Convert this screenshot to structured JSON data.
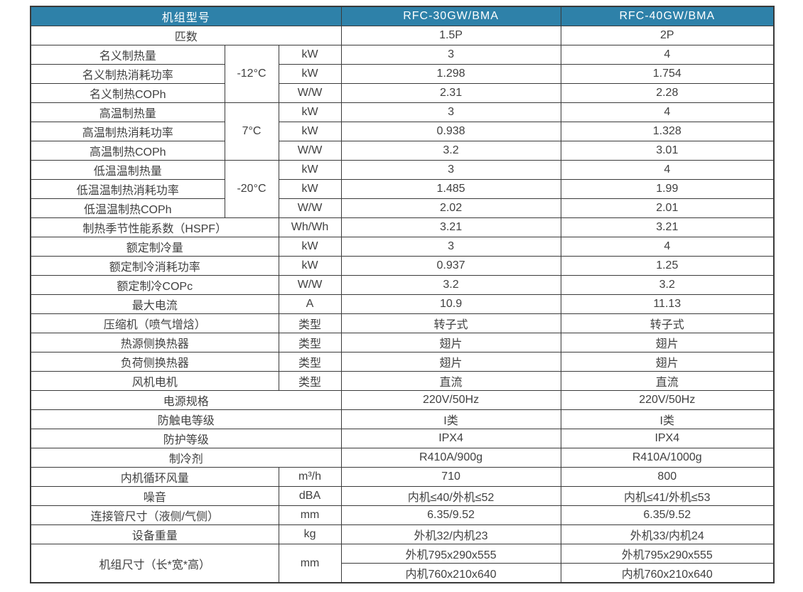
{
  "colors": {
    "header_bg": "#2e81a9",
    "header_text": "#ffffff",
    "border": "#3a3a3a",
    "cell_text": "#404040"
  },
  "table": {
    "header": {
      "model_label": "机组型号",
      "models": [
        "RFC-30GW/BMA",
        "RFC-40GW/BMA"
      ]
    },
    "rows": [
      {
        "cells": [
          {
            "text": "匹数",
            "colspan": 3,
            "kind": "label"
          },
          {
            "text": "1.5P",
            "kind": "value"
          },
          {
            "text": "2P",
            "kind": "value"
          }
        ]
      },
      {
        "cells": [
          {
            "text": "名义制热量",
            "kind": "label"
          },
          {
            "text": "-12°C",
            "rowspan": 3,
            "kind": "temp"
          },
          {
            "text": "kW",
            "kind": "unit"
          },
          {
            "text": "3",
            "kind": "value"
          },
          {
            "text": "4",
            "kind": "value"
          }
        ]
      },
      {
        "cells": [
          {
            "text": "名义制热消耗功率",
            "kind": "label"
          },
          {
            "text": "kW",
            "kind": "unit"
          },
          {
            "text": "1.298",
            "kind": "value"
          },
          {
            "text": "1.754",
            "kind": "value"
          }
        ]
      },
      {
        "cells": [
          {
            "text": "名义制热COPh",
            "kind": "label"
          },
          {
            "text": "W/W",
            "kind": "unit"
          },
          {
            "text": "2.31",
            "kind": "value"
          },
          {
            "text": "2.28",
            "kind": "value"
          }
        ]
      },
      {
        "cells": [
          {
            "text": "高温制热量",
            "kind": "label"
          },
          {
            "text": "7°C",
            "rowspan": 3,
            "kind": "temp"
          },
          {
            "text": "kW",
            "kind": "unit"
          },
          {
            "text": "3",
            "kind": "value"
          },
          {
            "text": "4",
            "kind": "value"
          }
        ]
      },
      {
        "cells": [
          {
            "text": "高温制热消耗功率",
            "kind": "label"
          },
          {
            "text": "kW",
            "kind": "unit"
          },
          {
            "text": "0.938",
            "kind": "value"
          },
          {
            "text": "1.328",
            "kind": "value"
          }
        ]
      },
      {
        "cells": [
          {
            "text": "高温制热COPh",
            "kind": "label"
          },
          {
            "text": "W/W",
            "kind": "unit"
          },
          {
            "text": "3.2",
            "kind": "value"
          },
          {
            "text": "3.01",
            "kind": "value"
          }
        ]
      },
      {
        "cells": [
          {
            "text": "低温温制热量",
            "kind": "label"
          },
          {
            "text": "-20°C",
            "rowspan": 3,
            "kind": "temp"
          },
          {
            "text": "kW",
            "kind": "unit"
          },
          {
            "text": "3",
            "kind": "value"
          },
          {
            "text": "4",
            "kind": "value"
          }
        ]
      },
      {
        "cells": [
          {
            "text": "低温温制热消耗功率",
            "kind": "label"
          },
          {
            "text": "kW",
            "kind": "unit"
          },
          {
            "text": "1.485",
            "kind": "value"
          },
          {
            "text": "1.99",
            "kind": "value"
          }
        ]
      },
      {
        "cells": [
          {
            "text": "低温温制热COPh",
            "kind": "label"
          },
          {
            "text": "W/W",
            "kind": "unit"
          },
          {
            "text": "2.02",
            "kind": "value"
          },
          {
            "text": "2.01",
            "kind": "value"
          }
        ]
      },
      {
        "cells": [
          {
            "text": "制热季节性能系数（HSPF）",
            "colspan": 2,
            "kind": "label"
          },
          {
            "text": "Wh/Wh",
            "kind": "unit"
          },
          {
            "text": "3.21",
            "kind": "value"
          },
          {
            "text": "3.21",
            "kind": "value"
          }
        ]
      },
      {
        "cells": [
          {
            "text": "额定制冷量",
            "colspan": 2,
            "kind": "label"
          },
          {
            "text": "kW",
            "kind": "unit"
          },
          {
            "text": "3",
            "kind": "value"
          },
          {
            "text": "4",
            "kind": "value"
          }
        ]
      },
      {
        "cells": [
          {
            "text": "额定制冷消耗功率",
            "colspan": 2,
            "kind": "label"
          },
          {
            "text": "kW",
            "kind": "unit"
          },
          {
            "text": "0.937",
            "kind": "value"
          },
          {
            "text": "1.25",
            "kind": "value"
          }
        ]
      },
      {
        "cells": [
          {
            "text": "额定制冷COPc",
            "colspan": 2,
            "kind": "label"
          },
          {
            "text": "W/W",
            "kind": "unit"
          },
          {
            "text": "3.2",
            "kind": "value"
          },
          {
            "text": "3.2",
            "kind": "value"
          }
        ]
      },
      {
        "cells": [
          {
            "text": "最大电流",
            "colspan": 2,
            "kind": "label"
          },
          {
            "text": "A",
            "kind": "unit"
          },
          {
            "text": "10.9",
            "kind": "value"
          },
          {
            "text": "11.13",
            "kind": "value"
          }
        ]
      },
      {
        "cells": [
          {
            "text": "压缩机（喷气增焓）",
            "colspan": 2,
            "kind": "label"
          },
          {
            "text": "类型",
            "kind": "unit"
          },
          {
            "text": "转子式",
            "kind": "value"
          },
          {
            "text": "转子式",
            "kind": "value"
          }
        ]
      },
      {
        "cells": [
          {
            "text": "热源侧换热器",
            "colspan": 2,
            "kind": "label"
          },
          {
            "text": "类型",
            "kind": "unit"
          },
          {
            "text": "翅片",
            "kind": "value"
          },
          {
            "text": "翅片",
            "kind": "value"
          }
        ]
      },
      {
        "cells": [
          {
            "text": "负荷侧换热器",
            "colspan": 2,
            "kind": "label"
          },
          {
            "text": "类型",
            "kind": "unit"
          },
          {
            "text": "翅片",
            "kind": "value"
          },
          {
            "text": "翅片",
            "kind": "value"
          }
        ]
      },
      {
        "cells": [
          {
            "text": "风机电机",
            "colspan": 2,
            "kind": "label"
          },
          {
            "text": "类型",
            "kind": "unit"
          },
          {
            "text": "直流",
            "kind": "value"
          },
          {
            "text": "直流",
            "kind": "value"
          }
        ]
      },
      {
        "cells": [
          {
            "text": "电源规格",
            "colspan": 3,
            "kind": "label"
          },
          {
            "text": "220V/50Hz",
            "kind": "value"
          },
          {
            "text": "220V/50Hz",
            "kind": "value"
          }
        ]
      },
      {
        "cells": [
          {
            "text": "防触电等级",
            "colspan": 3,
            "kind": "label"
          },
          {
            "text": "I类",
            "kind": "value"
          },
          {
            "text": "I类",
            "kind": "value"
          }
        ]
      },
      {
        "cells": [
          {
            "text": "防护等级",
            "colspan": 3,
            "kind": "label"
          },
          {
            "text": "IPX4",
            "kind": "value"
          },
          {
            "text": "IPX4",
            "kind": "value"
          }
        ]
      },
      {
        "cells": [
          {
            "text": "制冷剂",
            "colspan": 3,
            "kind": "label"
          },
          {
            "text": "R410A/900g",
            "kind": "value"
          },
          {
            "text": "R410A/1000g",
            "kind": "value"
          }
        ]
      },
      {
        "cells": [
          {
            "text": "内机循环风量",
            "colspan": 2,
            "kind": "label"
          },
          {
            "text": "m³/h",
            "kind": "unit"
          },
          {
            "text": "710",
            "kind": "value"
          },
          {
            "text": "800",
            "kind": "value"
          }
        ]
      },
      {
        "cells": [
          {
            "text": "噪音",
            "colspan": 2,
            "kind": "label"
          },
          {
            "text": "dBA",
            "kind": "unit"
          },
          {
            "text": "内机≤40/外机≤52",
            "kind": "value"
          },
          {
            "text": "内机≤41/外机≤53",
            "kind": "value"
          }
        ]
      },
      {
        "cells": [
          {
            "text": "连接管尺寸（液侧/气侧）",
            "colspan": 2,
            "kind": "label"
          },
          {
            "text": "mm",
            "kind": "unit"
          },
          {
            "text": "6.35/9.52",
            "kind": "value"
          },
          {
            "text": "6.35/9.52",
            "kind": "value"
          }
        ]
      },
      {
        "cells": [
          {
            "text": "设备重量",
            "colspan": 2,
            "kind": "label"
          },
          {
            "text": "kg",
            "kind": "unit"
          },
          {
            "text": "外机32/内机23",
            "kind": "value"
          },
          {
            "text": "外机33/内机24",
            "kind": "value"
          }
        ]
      },
      {
        "cells": [
          {
            "text": "机组尺寸（长*宽*高）",
            "colspan": 2,
            "rowspan": 2,
            "kind": "label"
          },
          {
            "text": "mm",
            "rowspan": 2,
            "kind": "unit"
          },
          {
            "text": "外机795x290x555",
            "kind": "value"
          },
          {
            "text": "外机795x290x555",
            "kind": "value"
          }
        ]
      },
      {
        "cells": [
          {
            "text": "内机760x210x640",
            "kind": "value"
          },
          {
            "text": "内机760x210x640",
            "kind": "value"
          }
        ]
      }
    ]
  }
}
